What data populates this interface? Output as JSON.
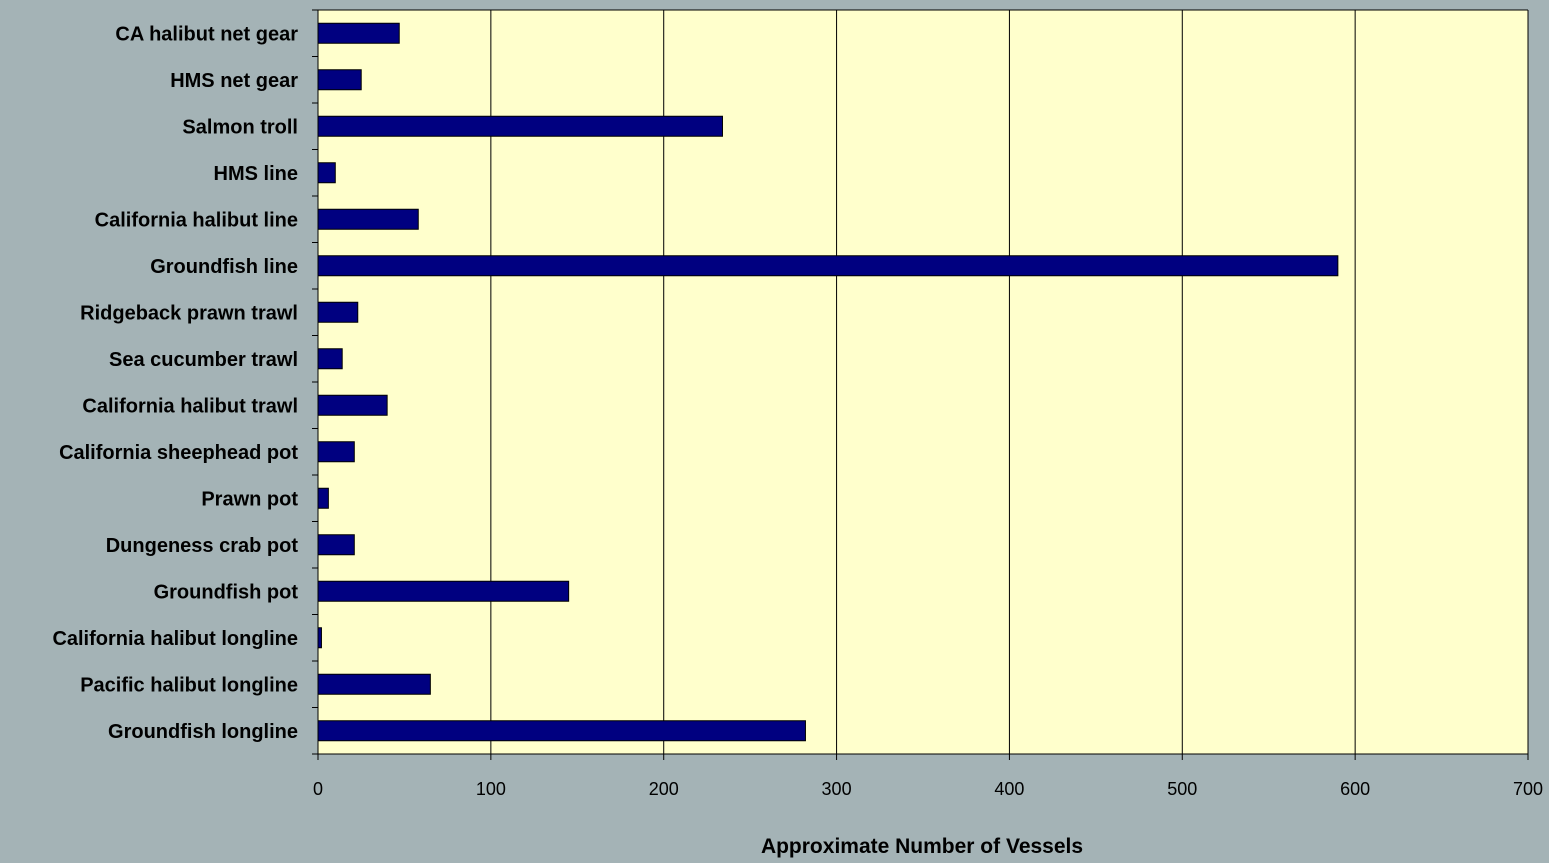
{
  "colors": {
    "page_background": "#a4b3b6",
    "plot_background": "#ffffcc",
    "bar_fill": "#000080",
    "bar_stroke": "#000000",
    "gridline": "#000000"
  },
  "chart_data": {
    "type": "bar",
    "orientation": "horizontal",
    "categories": [
      "CA halibut net gear",
      "HMS net gear",
      "Salmon troll",
      "HMS line",
      "California halibut line",
      "Groundfish line",
      "Ridgeback prawn trawl",
      "Sea cucumber trawl",
      "California halibut trawl",
      "California sheephead pot",
      "Prawn pot",
      "Dungeness crab pot",
      "Groundfish pot",
      "California halibut longline",
      "Pacific halibut longline",
      "Groundfish longline"
    ],
    "values": [
      47,
      25,
      234,
      10,
      58,
      590,
      23,
      14,
      40,
      21,
      6,
      21,
      145,
      2,
      65,
      282
    ],
    "title": "",
    "xlabel": "Approximate Number of Vessels",
    "ylabel": "",
    "xlim": [
      0,
      700
    ],
    "xticks": [
      0,
      100,
      200,
      300,
      400,
      500,
      600,
      700
    ],
    "grid": "vertical",
    "legend": "none"
  }
}
